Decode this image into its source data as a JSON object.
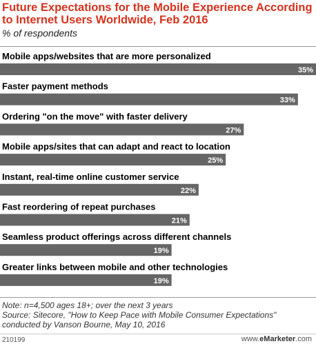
{
  "header": {
    "title": "Future Expectations for the Mobile Experience According to Internet Users Worldwide, Feb 2016",
    "subtitle": "% of respondents"
  },
  "chart_data": {
    "type": "bar",
    "orientation": "horizontal",
    "title": "Future Expectations for the Mobile Experience According to Internet Users Worldwide, Feb 2016",
    "subtitle": "% of respondents",
    "categories": [
      "Mobile apps/websites that are more personalized",
      "Faster payment methods",
      "Ordering \"on the move\" with faster delivery",
      "Mobile apps/sites that can adapt and react to location",
      "Instant, real-time online customer service",
      "Fast reordering of repeat purchases",
      "Seamless product offerings across different channels",
      "Greater links between mobile and other technologies"
    ],
    "values": [
      35,
      33,
      27,
      25,
      22,
      21,
      19,
      19
    ],
    "value_labels": [
      "35%",
      "33%",
      "27%",
      "25%",
      "22%",
      "21%",
      "19%",
      "19%"
    ],
    "unit": "%",
    "xlim": [
      0,
      35
    ],
    "bar_color": "#666666",
    "grid": false,
    "legend": "none"
  },
  "footer": {
    "note": "Note: n=4,500 ages 18+; over the next 3 years",
    "source": "Source: Sitecore, \"How to Keep Pace with Mobile Consumer Expectations\" conducted by Vanson Bourne, May 10, 2016",
    "chart_id": "210199",
    "brand_prefix": "www.",
    "brand_name": "eMarketer",
    "brand_suffix": ".com"
  },
  "colors": {
    "title": "#d7331e",
    "bar": "#666666",
    "brand_dot": "#6a9a2b"
  }
}
